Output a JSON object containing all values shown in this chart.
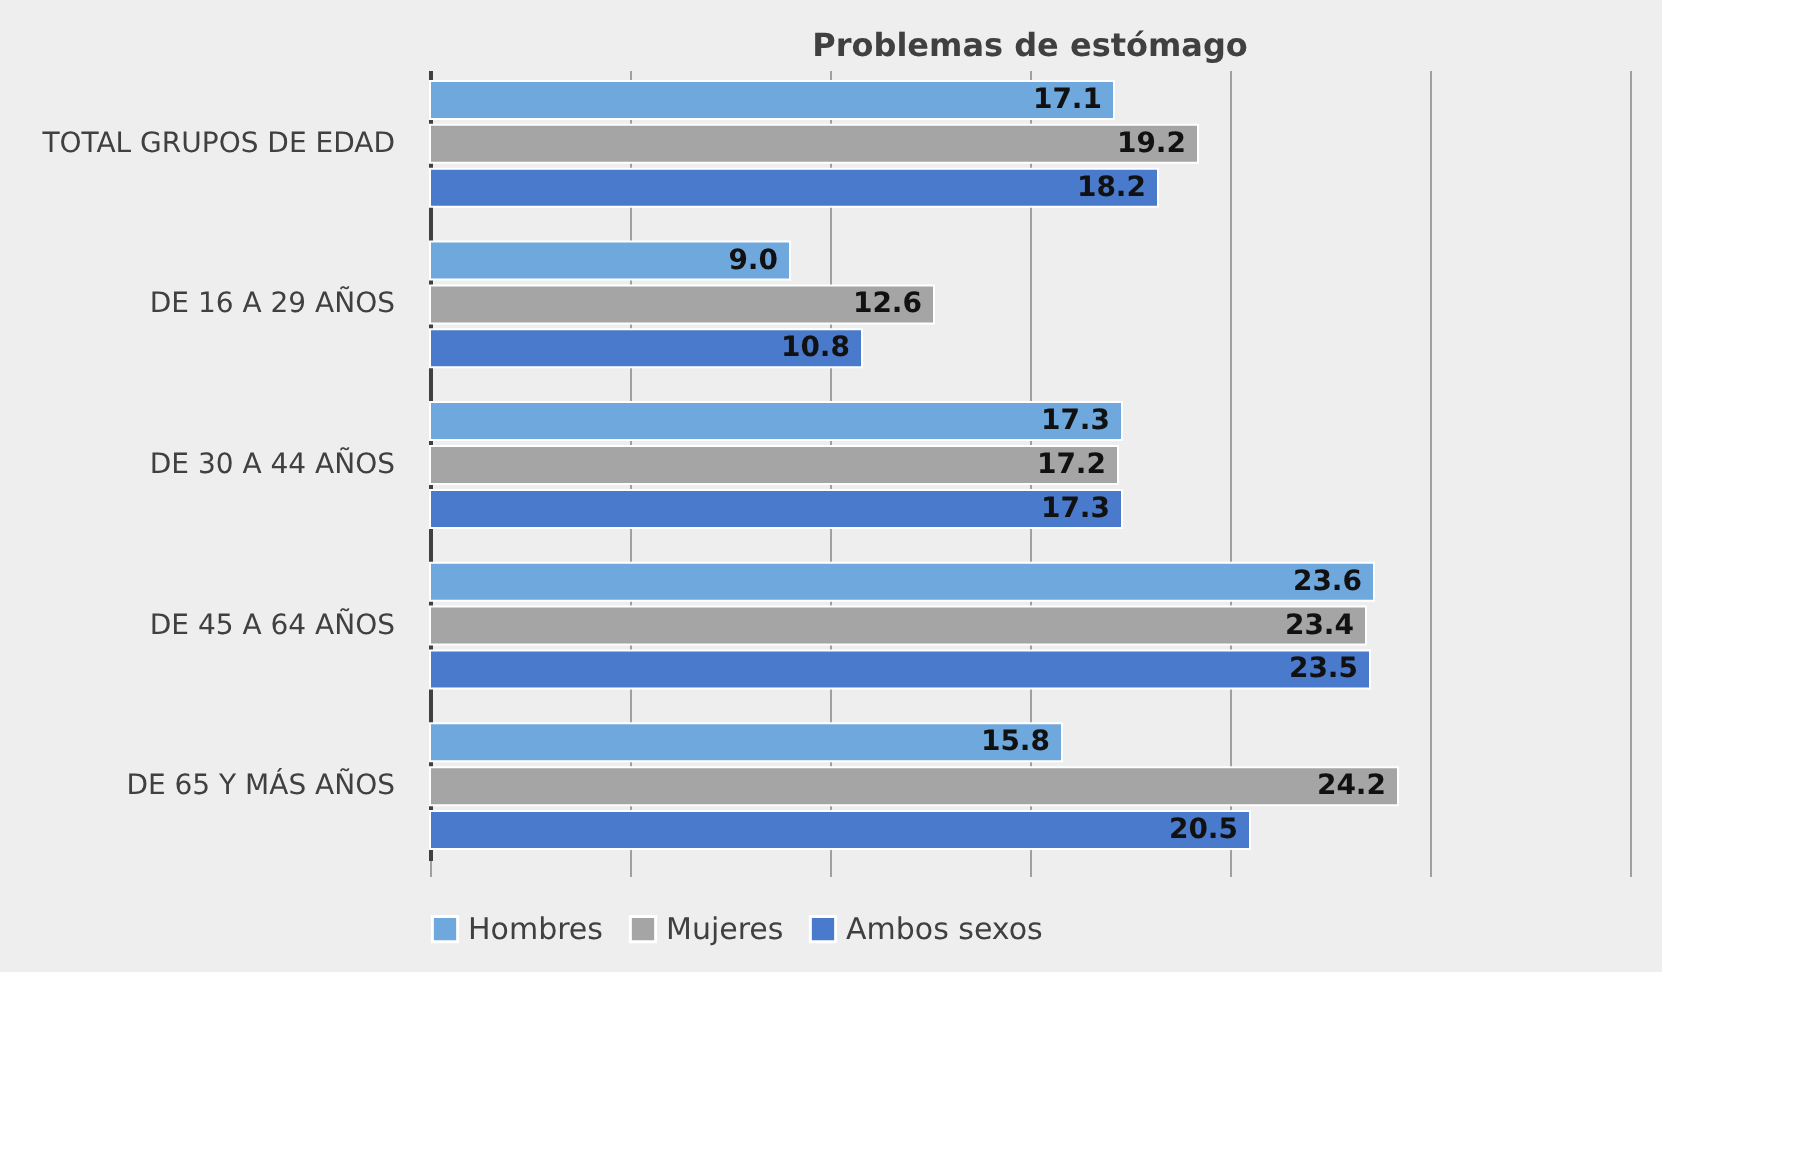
{
  "chart_data": {
    "type": "bar",
    "orientation": "horizontal",
    "title": "Problemas de estómago",
    "categories": [
      "TOTAL GRUPOS DE EDAD",
      "DE 16 A 29 AÑOS",
      "DE 30 A 44 AÑOS",
      "DE 45 A 64 AÑOS",
      "DE 65 Y MÁS AÑOS"
    ],
    "series": [
      {
        "name": "Hombres",
        "color": "#6fa8dc",
        "values": [
          17.1,
          9.0,
          17.3,
          23.6,
          15.8
        ],
        "value_labels": [
          "17.1",
          "9.0",
          "17.3",
          "23.6",
          "15.8"
        ]
      },
      {
        "name": "Mujeres",
        "color": "#a5a5a5",
        "values": [
          19.2,
          12.6,
          17.2,
          23.4,
          24.2
        ],
        "value_labels": [
          "19.2",
          "12.6",
          "17.2",
          "23.4",
          "24.2"
        ]
      },
      {
        "name": "Ambos sexos",
        "color": "#4a7acb",
        "values": [
          18.2,
          10.8,
          17.3,
          23.5,
          20.5
        ],
        "value_labels": [
          "18.2",
          "10.8",
          "17.3",
          "23.5",
          "20.5"
        ]
      }
    ],
    "xlim": [
      0,
      30
    ],
    "xticks": [
      {
        "value": 0,
        "label": null
      },
      {
        "value": 5,
        "label": null
      },
      {
        "value": 10,
        "label": null
      },
      {
        "value": 15,
        "label": null
      },
      {
        "value": 20,
        "label": null
      },
      {
        "value": 25,
        "label": null
      },
      {
        "value": 30,
        "label": null
      }
    ],
    "tick_labels": "y",
    "grid": "x",
    "legend": "bottom"
  }
}
